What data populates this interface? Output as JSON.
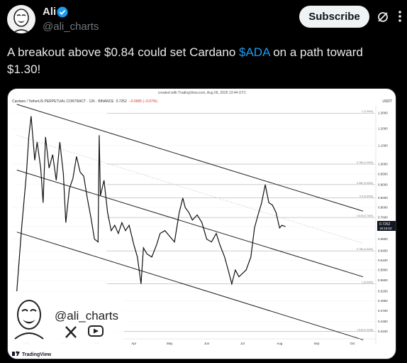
{
  "tweet": {
    "author_name": "Ali",
    "author_handle": "@ali_charts",
    "subscribe_label": "Subscribe",
    "text_before": "A breakout above $0.84 could set Cardano ",
    "cashtag": "$ADA",
    "text_after": " on a path toward $1.30!"
  },
  "icons": {
    "verified": "verified-badge-icon",
    "grok": "grok-icon",
    "more": "more-options-icon",
    "x": "x-logo-icon",
    "youtube": "youtube-icon",
    "tradingview": "tradingview-logo-icon"
  },
  "colors": {
    "accent": "#1d9bf0",
    "subscribe_bg": "#eff3f4",
    "background": "#000000"
  },
  "chart_data": {
    "type": "line",
    "created_with": "created with TradingView.com, Aug 06, 2025 13:44 UTC",
    "symbol": "Cardano / TetherUS PERPETUAL CONTRACT · 12h · BINANCE",
    "last_value": "0.7252",
    "change": "−0.0005 (−0.07%)",
    "currency": "USDT",
    "price_label": "0.7252",
    "countdown": "19:15:53",
    "watermark_handle": "@ali_charts",
    "brand": "TradingView",
    "x_ticks": [
      "2025",
      "Feb",
      "Mar",
      "Apr",
      "May",
      "Jun",
      "Jul",
      "Aug",
      "Sep",
      "Oct"
    ],
    "y_ticks": [
      "1.3000",
      "1.2000",
      "1.1000",
      "1.0000",
      "0.9500",
      "0.9000",
      "0.8400",
      "0.8000",
      "0.7600",
      "0.7252",
      "0.6800",
      "0.6400",
      "0.6100",
      "0.5800",
      "0.5500",
      "0.5200",
      "0.4950",
      "0.4700",
      "0.4450",
      "0.4230"
    ],
    "fib_levels": [
      {
        "label": "1 (1.3000)",
        "value": 1.3
      },
      {
        "label": "0.786 (1.0000)",
        "value": 1.0
      },
      {
        "label": "0.382 (0.9000)",
        "value": 0.9
      },
      {
        "label": "0.5 (0.8400)",
        "value": 0.84
      },
      {
        "label": "0.618 (0.7600)",
        "value": 0.76
      },
      {
        "label": "0.786 (0.6400)",
        "value": 0.64
      },
      {
        "label": "1 (0.5400)",
        "value": 0.54
      },
      {
        "label": "1.618 (0.4230)",
        "value": 0.423
      }
    ],
    "channel_lines": 4,
    "price_series": [
      [
        "2024-12-24",
        0.52
      ],
      [
        "2024-12-28",
        0.72
      ],
      [
        "2025-01-01",
        0.95
      ],
      [
        "2025-01-03",
        1.15
      ],
      [
        "2025-01-05",
        1.28
      ],
      [
        "2025-01-08",
        1.02
      ],
      [
        "2025-01-10",
        1.12
      ],
      [
        "2025-01-13",
        0.98
      ],
      [
        "2025-01-15",
        0.82
      ],
      [
        "2025-01-17",
        1.15
      ],
      [
        "2025-01-20",
        0.98
      ],
      [
        "2025-01-23",
        1.05
      ],
      [
        "2025-01-26",
        0.92
      ],
      [
        "2025-01-29",
        1.12
      ],
      [
        "2025-02-01",
        0.95
      ],
      [
        "2025-02-03",
        0.74
      ],
      [
        "2025-02-06",
        0.88
      ],
      [
        "2025-02-09",
        0.93
      ],
      [
        "2025-02-12",
        1.04
      ],
      [
        "2025-02-15",
        0.96
      ],
      [
        "2025-02-18",
        0.94
      ],
      [
        "2025-02-21",
        0.84
      ],
      [
        "2025-02-24",
        0.76
      ],
      [
        "2025-02-27",
        0.68
      ],
      [
        "2025-03-02",
        0.67
      ],
      [
        "2025-03-03",
        1.16
      ],
      [
        "2025-03-04",
        0.85
      ],
      [
        "2025-03-07",
        0.92
      ],
      [
        "2025-03-10",
        0.78
      ],
      [
        "2025-03-13",
        0.71
      ],
      [
        "2025-03-16",
        0.73
      ],
      [
        "2025-03-19",
        0.7
      ],
      [
        "2025-03-22",
        0.74
      ],
      [
        "2025-03-25",
        0.71
      ],
      [
        "2025-03-28",
        0.73
      ],
      [
        "2025-04-01",
        0.66
      ],
      [
        "2025-04-04",
        0.62
      ],
      [
        "2025-04-07",
        0.54
      ],
      [
        "2025-04-09",
        0.65
      ],
      [
        "2025-04-12",
        0.63
      ],
      [
        "2025-04-16",
        0.62
      ],
      [
        "2025-04-20",
        0.66
      ],
      [
        "2025-04-23",
        0.7
      ],
      [
        "2025-04-27",
        0.71
      ],
      [
        "2025-05-01",
        0.69
      ],
      [
        "2025-05-05",
        0.67
      ],
      [
        "2025-05-09",
        0.78
      ],
      [
        "2025-05-12",
        0.84
      ],
      [
        "2025-05-14",
        0.8
      ],
      [
        "2025-05-17",
        0.78
      ],
      [
        "2025-05-20",
        0.75
      ],
      [
        "2025-05-24",
        0.77
      ],
      [
        "2025-05-28",
        0.74
      ],
      [
        "2025-06-01",
        0.68
      ],
      [
        "2025-06-05",
        0.67
      ],
      [
        "2025-06-09",
        0.7
      ],
      [
        "2025-06-12",
        0.66
      ],
      [
        "2025-06-16",
        0.62
      ],
      [
        "2025-06-19",
        0.58
      ],
      [
        "2025-06-22",
        0.54
      ],
      [
        "2025-06-25",
        0.58
      ],
      [
        "2025-06-28",
        0.56
      ],
      [
        "2025-07-01",
        0.57
      ],
      [
        "2025-07-04",
        0.58
      ],
      [
        "2025-07-08",
        0.62
      ],
      [
        "2025-07-11",
        0.72
      ],
      [
        "2025-07-14",
        0.77
      ],
      [
        "2025-07-17",
        0.82
      ],
      [
        "2025-07-20",
        0.9
      ],
      [
        "2025-07-23",
        0.82
      ],
      [
        "2025-07-26",
        0.81
      ],
      [
        "2025-07-29",
        0.78
      ],
      [
        "2025-08-01",
        0.72
      ],
      [
        "2025-08-03",
        0.73
      ],
      [
        "2025-08-06",
        0.7252
      ]
    ],
    "grid": true,
    "legend": "none"
  }
}
